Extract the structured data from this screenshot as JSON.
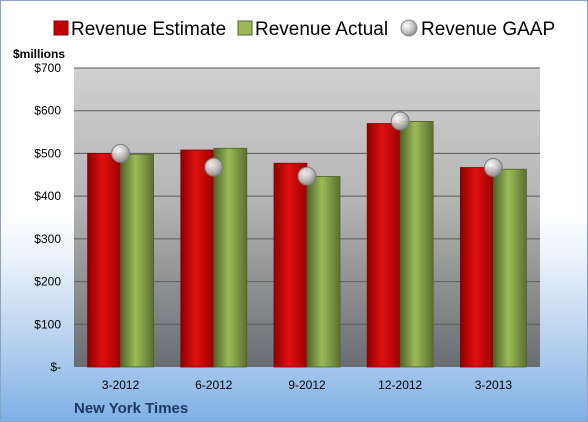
{
  "chart_data": {
    "type": "bar",
    "unit_label": "$millions",
    "company": "New York Times",
    "categories": [
      "3-2012",
      "6-2012",
      "9-2012",
      "12-2012",
      "3-2013"
    ],
    "ylim": [
      0,
      700
    ],
    "y_ticks": [
      0,
      100,
      200,
      300,
      400,
      500,
      600,
      700
    ],
    "y_tick_labels": [
      "$-",
      "$100",
      "$200",
      "$300",
      "$400",
      "$500",
      "$600",
      "$700"
    ],
    "grid": true,
    "legend_position": "top",
    "series": [
      {
        "name": "Revenue Estimate",
        "kind": "bar",
        "color": "#c00000",
        "values": [
          500,
          508,
          477,
          570,
          467
        ]
      },
      {
        "name": "Revenue Actual",
        "kind": "bar",
        "color": "#77933c",
        "values": [
          498,
          512,
          446,
          575,
          463
        ]
      },
      {
        "name": "Revenue GAAP",
        "kind": "marker",
        "color": "#b0b0b0",
        "values": [
          500,
          468,
          447,
          576,
          467
        ]
      }
    ],
    "colors": {
      "estimate_dark": "#8b0000",
      "actual_dark": "#4f6228",
      "plot_top": "#cfcfcf",
      "plot_bottom": "#6e6e6e",
      "company": "#1f3864"
    }
  }
}
